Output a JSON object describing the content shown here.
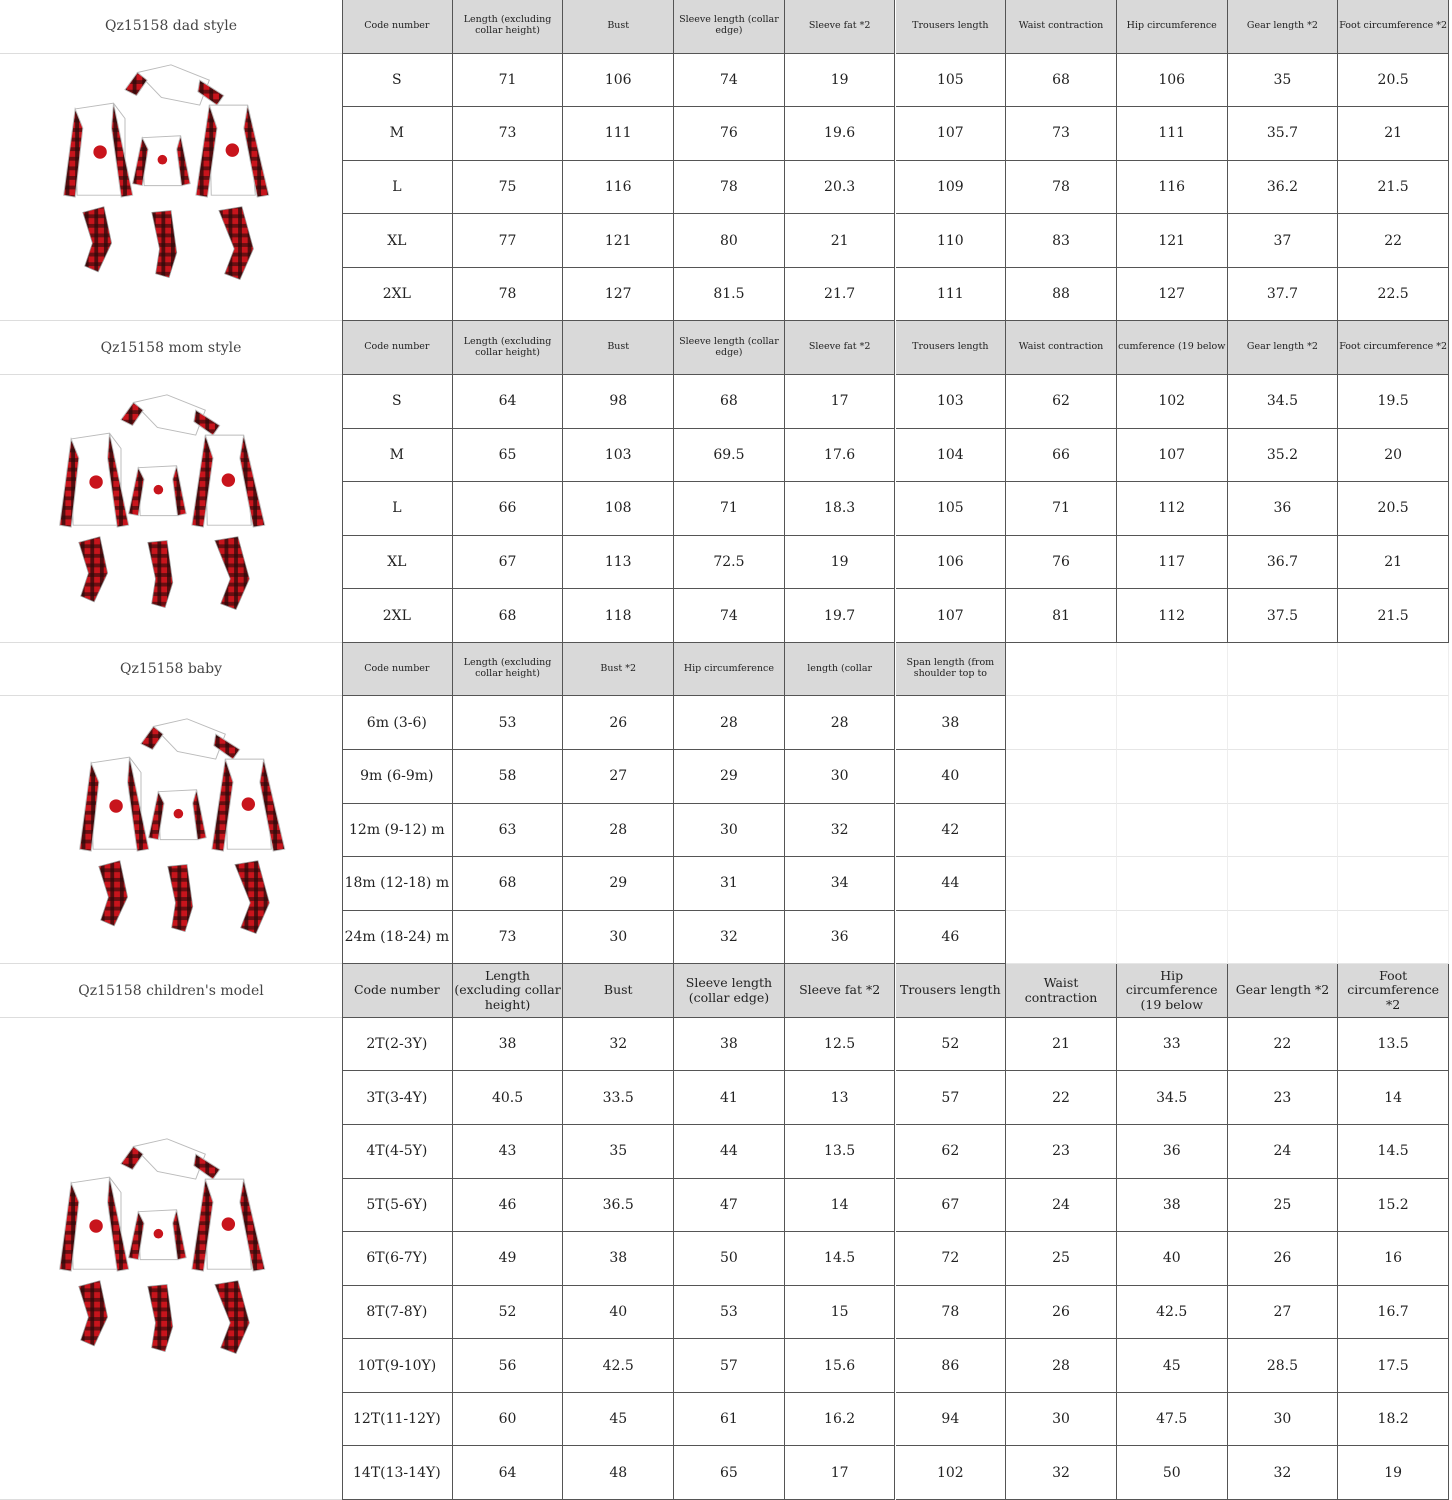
{
  "sections": [
    {
      "title": "Qz15158 dad style",
      "header": [
        "Code number",
        "Length (excluding collar height)",
        "Bust",
        "Sleeve length (collar edge)",
        "Sleeve fat *2",
        "Trousers length",
        "Waist contraction",
        "Hip circumference",
        "Gear length *2",
        "Foot circumference *2"
      ],
      "rows": [
        [
          "S",
          "71",
          "106",
          "74",
          "19",
          "105",
          "68",
          "106",
          "35",
          "20.5"
        ],
        [
          "M",
          "73",
          "111",
          "76",
          "19.6",
          "107",
          "73",
          "111",
          "35.7",
          "21"
        ],
        [
          "L",
          "75",
          "116",
          "78",
          "20.3",
          "109",
          "78",
          "116",
          "36.2",
          "21.5"
        ],
        [
          "XL",
          "77",
          "121",
          "80",
          "21",
          "110",
          "83",
          "121",
          "37",
          "22"
        ],
        [
          "2XL",
          "78",
          "127",
          "81.5",
          "21.7",
          "111",
          "88",
          "127",
          "37.7",
          "22.5"
        ]
      ]
    },
    {
      "title": "Qz15158 mom style",
      "header": [
        "Code number",
        "Length (excluding collar height)",
        "Bust",
        "Sleeve length (collar edge)",
        "Sleeve fat *2",
        "Trousers length",
        "Waist contraction",
        "cumference (19 below",
        "Gear length *2",
        "Foot circumference *2"
      ],
      "rows": [
        [
          "S",
          "64",
          "98",
          "68",
          "17",
          "103",
          "62",
          "102",
          "34.5",
          "19.5"
        ],
        [
          "M",
          "65",
          "103",
          "69.5",
          "17.6",
          "104",
          "66",
          "107",
          "35.2",
          "20"
        ],
        [
          "L",
          "66",
          "108",
          "71",
          "18.3",
          "105",
          "71",
          "112",
          "36",
          "20.5"
        ],
        [
          "XL",
          "67",
          "113",
          "72.5",
          "19",
          "106",
          "76",
          "117",
          "36.7",
          "21"
        ],
        [
          "2XL",
          "68",
          "118",
          "74",
          "19.7",
          "107",
          "81",
          "112",
          "37.5",
          "21.5"
        ]
      ]
    },
    {
      "title": "Qz15158 baby",
      "header": [
        "Code number",
        "Length (excluding collar height)",
        "Bust *2",
        "Hip circumference",
        "length (collar",
        "Span length (from shoulder top to"
      ],
      "rows": [
        [
          "6m (3-6)",
          "53",
          "26",
          "28",
          "28",
          "38"
        ],
        [
          "9m (6-9m)",
          "58",
          "27",
          "29",
          "30",
          "40"
        ],
        [
          "12m (9-12) m",
          "63",
          "28",
          "30",
          "32",
          "42"
        ],
        [
          "18m (12-18) m",
          "68",
          "29",
          "31",
          "34",
          "44"
        ],
        [
          "24m (18-24) m",
          "73",
          "30",
          "32",
          "36",
          "46"
        ]
      ]
    },
    {
      "title": "Qz15158 children's model",
      "header": [
        "Code number",
        "Length (excluding collar height)",
        "Bust",
        "Sleeve length (collar edge)",
        "Sleeve fat *2",
        "Trousers length",
        "Waist contraction",
        "Hip circumference (19 below",
        "Gear length *2",
        "Foot circumference *2"
      ],
      "rows": [
        [
          "2T(2-3Y)",
          "38",
          "32",
          "38",
          "12.5",
          "52",
          "21",
          "33",
          "22",
          "13.5"
        ],
        [
          "3T(3-4Y)",
          "40.5",
          "33.5",
          "41",
          "13",
          "57",
          "22",
          "34.5",
          "23",
          "14"
        ],
        [
          "4T(4-5Y)",
          "43",
          "35",
          "44",
          "13.5",
          "62",
          "23",
          "36",
          "24",
          "14.5"
        ],
        [
          "5T(5-6Y)",
          "46",
          "36.5",
          "47",
          "14",
          "67",
          "24",
          "38",
          "25",
          "15.2"
        ],
        [
          "6T(6-7Y)",
          "49",
          "38",
          "50",
          "14.5",
          "72",
          "25",
          "40",
          "26",
          "16"
        ],
        [
          "8T(7-8Y)",
          "52",
          "40",
          "53",
          "15",
          "78",
          "26",
          "42.5",
          "27",
          "16.7"
        ],
        [
          "10T(9-10Y)",
          "56",
          "42.5",
          "57",
          "15.6",
          "86",
          "28",
          "45",
          "28.5",
          "17.5"
        ],
        [
          "12T(11-12Y)",
          "60",
          "45",
          "61",
          "16.2",
          "94",
          "30",
          "47.5",
          "30",
          "18.2"
        ],
        [
          "14T(13-14Y)",
          "64",
          "48",
          "65",
          "17",
          "102",
          "32",
          "50",
          "32",
          "19"
        ]
      ]
    }
  ]
}
